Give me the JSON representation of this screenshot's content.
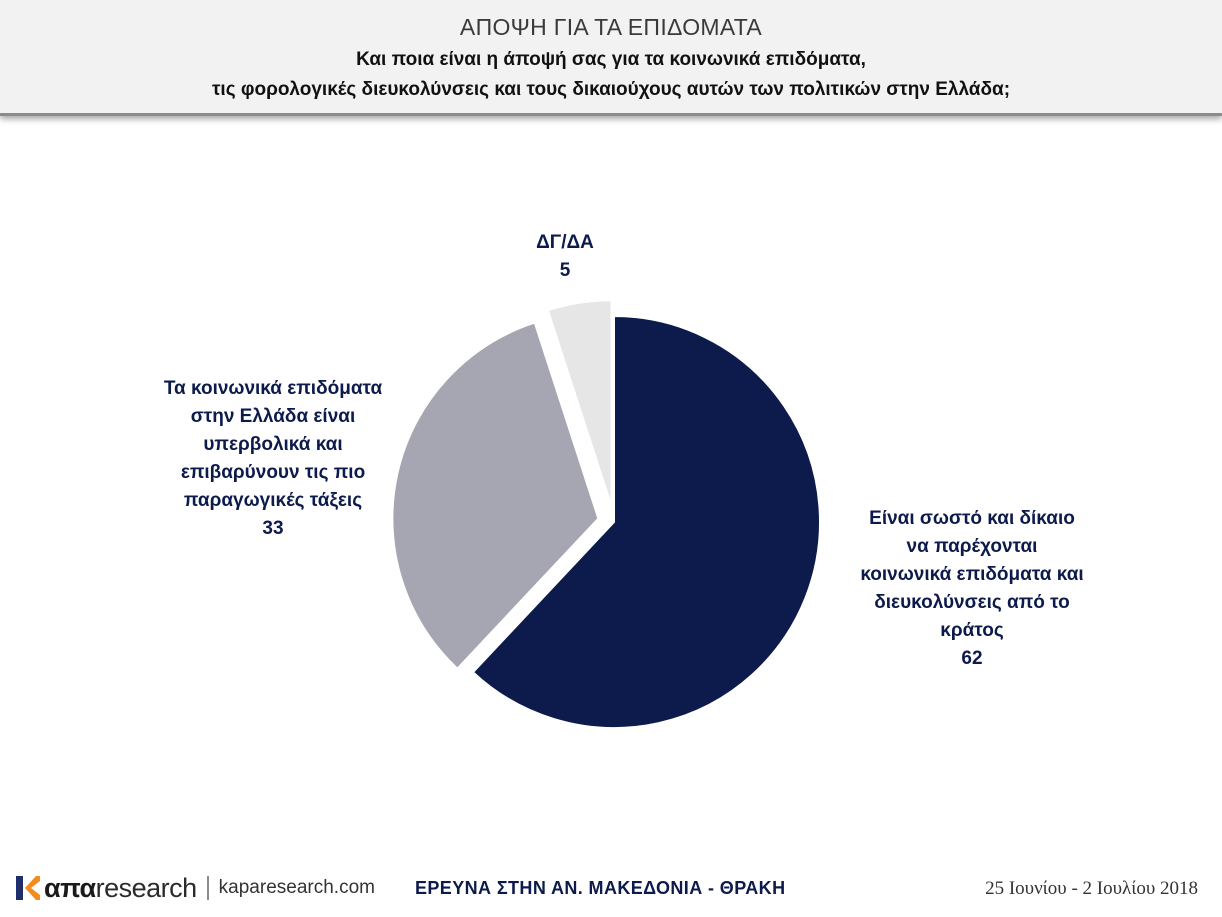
{
  "header": {
    "title": "ΑΠΟΨΗ ΓΙΑ ΤΑ ΕΠΙΔΟΜΑΤΑ",
    "question_line1": "Και ποια είναι η άποψή σας για τα κοινωνικά επιδόματα,",
    "question_line2": "τις φορολογικές διευκολύνσεις και τους δικαιούχους αυτών των πολιτικών στην Ελλάδα;"
  },
  "chart_data": {
    "type": "pie",
    "title": "ΑΠΟΨΗ ΓΙΑ ΤΑ ΕΠΙΔΟΜΑΤΑ",
    "categories": [
      "Είναι σωστό και δίκαιο να παρέχονται κοινωνικά επιδόματα και διευκολύνσεις από το κράτος",
      "Τα κοινωνικά επιδόματα στην Ελλάδα είναι υπερβολικά και επιβαρύνουν τις πιο παραγωγικές τάξεις",
      "ΔΓ/ΔΑ"
    ],
    "values": [
      62,
      33,
      5
    ],
    "slices": [
      {
        "label_lines": [
          "Είναι σωστό και δίκαιο",
          "να παρέχονται",
          "κοινωνικά επιδόματα και",
          "διευκολύνσεις από το",
          "κράτος"
        ],
        "value": 62,
        "color": "#0d1b4c",
        "exploded": false
      },
      {
        "label_lines": [
          "Τα κοινωνικά επιδόματα",
          "στην Ελλάδα είναι",
          "υπερβολικά και",
          "επιβαρύνουν τις πιο",
          "παραγωγικές τάξεις"
        ],
        "value": 33,
        "color": "#a6a6b3",
        "exploded": true
      },
      {
        "label_lines": [
          "ΔΓ/ΔΑ"
        ],
        "value": 5,
        "color": "#e6e6e6",
        "exploded": true
      }
    ],
    "legend": "none",
    "label_color": "#0d1b4c"
  },
  "footer": {
    "logo_prefix": "κ",
    "logo_bold": "απα",
    "logo_rest": "research",
    "url": "kaparesearch.com",
    "survey": "ΕΡΕΥΝΑ ΣΤΗΝ ΑΝ. ΜΑΚΕΔΟΝΙΑ - ΘΡΑΚΗ",
    "date": "25 Ιουνίου - 2 Ιουλίου 2018"
  }
}
